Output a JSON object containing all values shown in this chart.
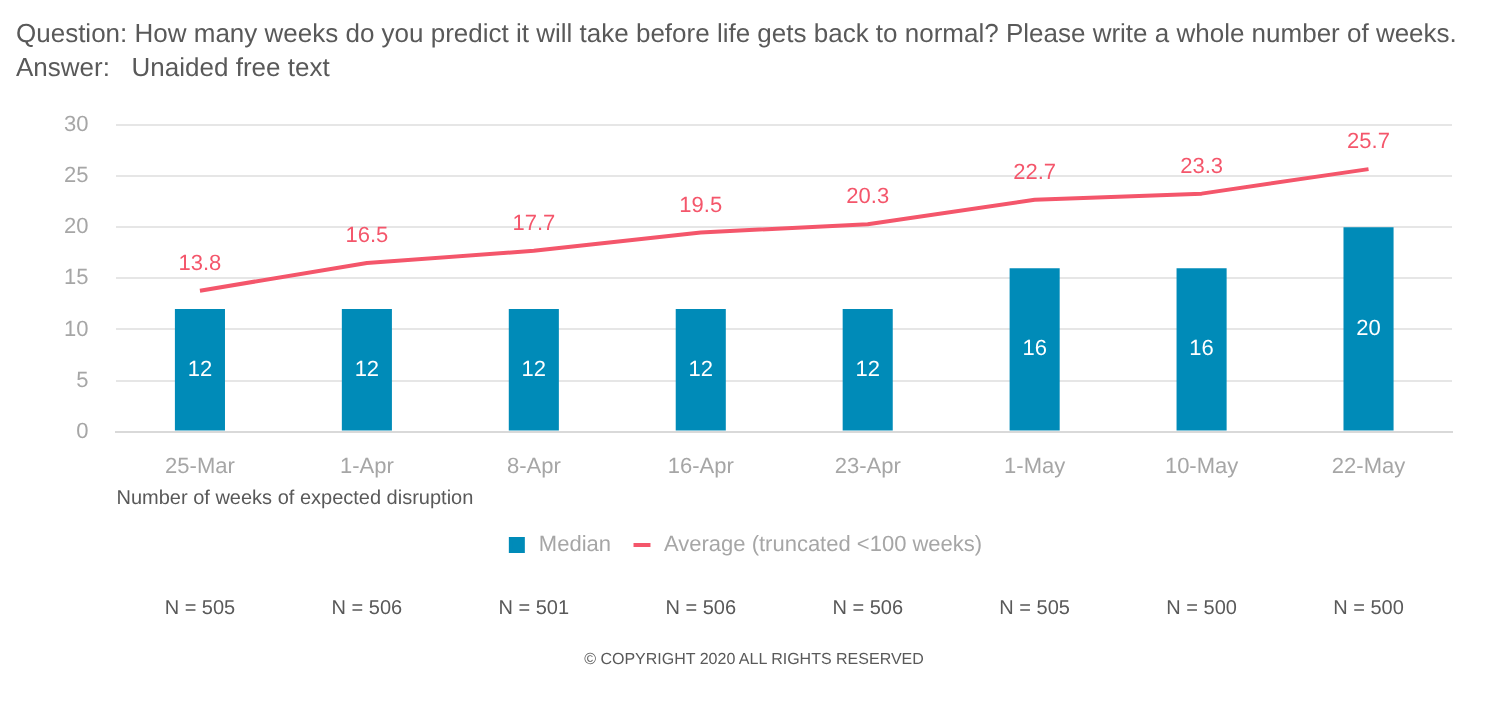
{
  "chart_data": {
    "type": "bar",
    "title": "Question: How many weeks do you predict it will take before life gets back to normal? Please write a whole number of weeks.",
    "subtitle": "Answer:   Unaided free text",
    "xlabel": "Number of weeks of expected disruption",
    "categories": [
      "25-Mar",
      "1-Apr",
      "8-Apr",
      "16-Apr",
      "23-Apr",
      "1-May",
      "10-May",
      "22-May"
    ],
    "series": [
      {
        "name": "Median",
        "color": "#008bb8",
        "values": [
          12,
          12,
          12,
          12,
          12,
          16,
          16,
          20
        ]
      },
      {
        "name": "Average (truncated <100 weeks)",
        "type": "line",
        "color": "#f4566b",
        "values": [
          13.8,
          16.5,
          17.7,
          19.5,
          20.3,
          22.7,
          23.3,
          25.7
        ]
      }
    ],
    "ylim": [
      0,
      30
    ],
    "yticks": [
      0,
      5,
      10,
      15,
      20,
      25,
      30
    ],
    "grid": "y",
    "legend": "bottom",
    "marker": "none",
    "data_labels": true,
    "annotations": [
      "N = 505",
      "N = 506",
      "N = 501",
      "N = 506",
      "N = 506",
      "N = 505",
      "N = 500",
      "N = 500",
      "© COPYRIGHT 2020 ALL RIGHTS RESERVED"
    ]
  }
}
